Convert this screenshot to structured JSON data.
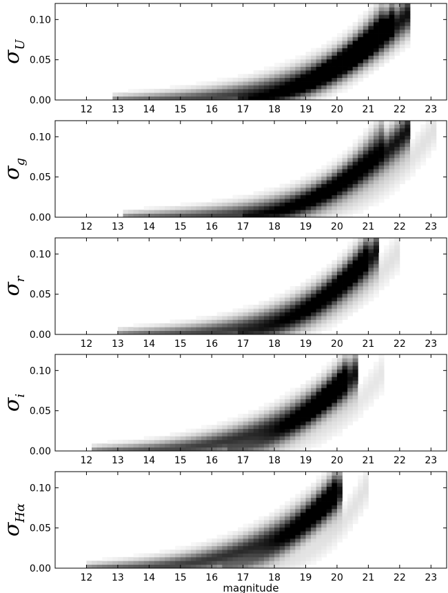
{
  "chart_data": [
    {
      "type": "heatmap",
      "ylabel_symbol": "σ",
      "ylabel_subscript": "U",
      "xlim": [
        11,
        23.5
      ],
      "ylim": [
        0,
        0.12
      ],
      "x_ticks": [
        12,
        13,
        14,
        15,
        16,
        17,
        18,
        19,
        20,
        21,
        22,
        23
      ],
      "y_ticks": [
        0.0,
        0.05,
        0.1
      ],
      "y_tick_labels": [
        "0.00",
        "0.05",
        "0.10"
      ],
      "density_tracks": [
        {
          "x0": 12.8,
          "x1": 22.3,
          "exp": 3.2,
          "y_end": 0.108,
          "weight": 0.95
        },
        {
          "x0": 16.8,
          "x1": 21.8,
          "exp": 2.4,
          "y_end": 0.105,
          "weight": 0.5
        },
        {
          "x0": 17.2,
          "x1": 21.5,
          "exp": 2.0,
          "y_end": 0.105,
          "weight": 0.35
        }
      ]
    },
    {
      "type": "heatmap",
      "ylabel_symbol": "σ",
      "ylabel_subscript": "g",
      "xlim": [
        11,
        23.5
      ],
      "ylim": [
        0,
        0.12
      ],
      "x_ticks": [
        12,
        13,
        14,
        15,
        16,
        17,
        18,
        19,
        20,
        21,
        22,
        23
      ],
      "y_ticks": [
        0.0,
        0.05,
        0.1
      ],
      "y_tick_labels": [
        "0.00",
        "0.05",
        "0.10"
      ],
      "density_tracks": [
        {
          "x0": 13.2,
          "x1": 22.3,
          "exp": 3.6,
          "y_end": 0.11,
          "weight": 0.95
        },
        {
          "x0": 17.0,
          "x1": 21.5,
          "exp": 2.3,
          "y_end": 0.105,
          "weight": 0.45
        },
        {
          "x0": 18.0,
          "x1": 23.2,
          "exp": 2.6,
          "y_end": 0.115,
          "weight": 0.12
        }
      ]
    },
    {
      "type": "heatmap",
      "ylabel_symbol": "σ",
      "ylabel_subscript": "r",
      "xlim": [
        11,
        23.5
      ],
      "ylim": [
        0,
        0.12
      ],
      "x_ticks": [
        12,
        13,
        14,
        15,
        16,
        17,
        18,
        19,
        20,
        21,
        22,
        23
      ],
      "y_ticks": [
        0.0,
        0.05,
        0.1
      ],
      "y_tick_labels": [
        "0.00",
        "0.05",
        "0.10"
      ],
      "density_tracks": [
        {
          "x0": 13.0,
          "x1": 21.3,
          "exp": 3.4,
          "y_end": 0.105,
          "weight": 0.95
        },
        {
          "x0": 16.8,
          "x1": 21.0,
          "exp": 2.2,
          "y_end": 0.105,
          "weight": 0.45
        },
        {
          "x0": 17.5,
          "x1": 22.0,
          "exp": 2.2,
          "y_end": 0.105,
          "weight": 0.12
        }
      ]
    },
    {
      "type": "heatmap",
      "ylabel_symbol": "σ",
      "ylabel_subscript": "i",
      "xlim": [
        11,
        23.5
      ],
      "ylim": [
        0,
        0.12
      ],
      "x_ticks": [
        12,
        13,
        14,
        15,
        16,
        17,
        18,
        19,
        20,
        21,
        22,
        23
      ],
      "y_ticks": [
        0.0,
        0.05,
        0.1
      ],
      "y_tick_labels": [
        "0.00",
        "0.05",
        "0.10"
      ],
      "density_tracks": [
        {
          "x0": 12.2,
          "x1": 20.7,
          "exp": 3.0,
          "y_end": 0.1,
          "weight": 0.95
        },
        {
          "x0": 16.5,
          "x1": 20.4,
          "exp": 2.0,
          "y_end": 0.1,
          "weight": 0.55
        },
        {
          "x0": 17.5,
          "x1": 21.5,
          "exp": 2.2,
          "y_end": 0.1,
          "weight": 0.1
        }
      ]
    },
    {
      "type": "heatmap",
      "ylabel_symbol": "σ",
      "ylabel_subscript": "Hα",
      "xlim": [
        11,
        23.5
      ],
      "ylim": [
        0,
        0.12
      ],
      "x_ticks": [
        12,
        13,
        14,
        15,
        16,
        17,
        18,
        19,
        20,
        21,
        22,
        23
      ],
      "y_ticks": [
        0.0,
        0.05,
        0.1
      ],
      "y_tick_labels": [
        "0.00",
        "0.05",
        "0.10"
      ],
      "xlabel": "magnitude",
      "density_tracks": [
        {
          "x0": 12.0,
          "x1": 20.2,
          "exp": 3.0,
          "y_end": 0.1,
          "weight": 0.95
        },
        {
          "x0": 16.3,
          "x1": 20.0,
          "exp": 2.0,
          "y_end": 0.1,
          "weight": 0.5
        },
        {
          "x0": 17.5,
          "x1": 21.0,
          "exp": 2.3,
          "y_end": 0.105,
          "weight": 0.12
        }
      ]
    }
  ]
}
